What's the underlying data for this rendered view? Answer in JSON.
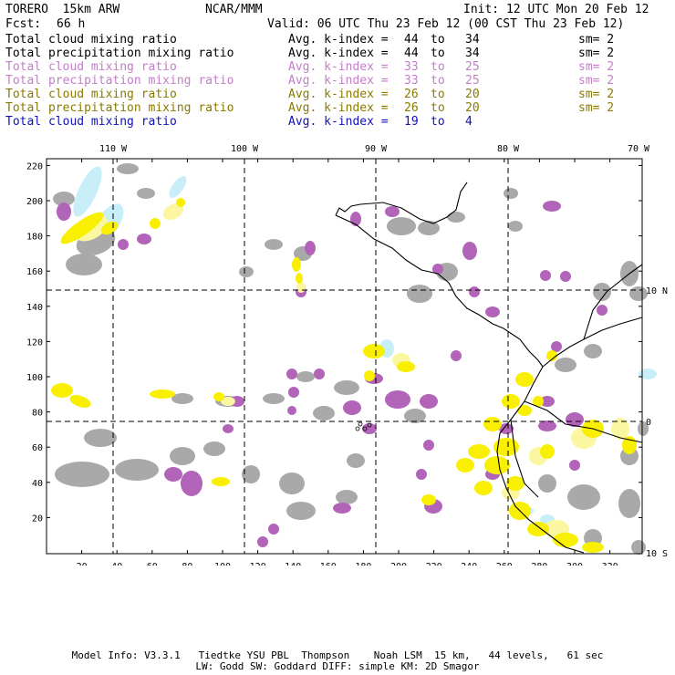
{
  "header": {
    "model": "TORERO  15km ARW",
    "org": "NCAR/MMM",
    "init": "Init: 12 UTC Mon 20 Feb 12",
    "fcst_label": "Fcst:",
    "fcst_value": "66 h",
    "valid": "Valid: 06 UTC Thu 23 Feb 12 (00 CST Thu 23 Feb 12)"
  },
  "legend": [
    {
      "name": "Total cloud mixing ratio",
      "idx": "Avg. k-index =",
      "from": "44",
      "to": "to",
      "end": "34",
      "sm": "sm= 2",
      "color": "#000000"
    },
    {
      "name": "Total precipitation mixing ratio",
      "idx": "Avg. k-index =",
      "from": "44",
      "to": "to",
      "end": "34",
      "sm": "sm= 2",
      "color": "#000000"
    },
    {
      "name": "Total cloud mixing ratio",
      "idx": "Avg. k-index =",
      "from": "33",
      "to": "to",
      "end": "25",
      "sm": "sm= 2",
      "color": "#c27ec8"
    },
    {
      "name": "Total precipitation mixing ratio",
      "idx": "Avg. k-index =",
      "from": "33",
      "to": "to",
      "end": "25",
      "sm": "sm= 2",
      "color": "#c27ec8"
    },
    {
      "name": "Total cloud mixing ratio",
      "idx": "Avg. k-index =",
      "from": "26",
      "to": "to",
      "end": "20",
      "sm": "sm= 2",
      "color": "#8a7a00"
    },
    {
      "name": "Total precipitation mixing ratio",
      "idx": "Avg. k-index =",
      "from": "26",
      "to": "to",
      "end": "20",
      "sm": "sm= 2",
      "color": "#8a7a00"
    },
    {
      "name": "Total cloud mixing ratio",
      "idx": "Avg. k-index =",
      "from": "19",
      "to": "to",
      "end": "4",
      "sm": "",
      "color": "#1010c0"
    }
  ],
  "map": {
    "top_lon_labels": [
      "110 W",
      "100 W",
      "90 W",
      "80 W",
      "70 W"
    ],
    "right_lat_labels": [
      "10 N",
      "0",
      "10 S"
    ],
    "y_ticks": [
      "220",
      "200",
      "180",
      "160",
      "140",
      "120",
      "100",
      "80",
      "60",
      "40",
      "20"
    ],
    "x_ticks": [
      "20",
      "40",
      "60",
      "80",
      "100",
      "120",
      "140",
      "160",
      "180",
      "200",
      "220",
      "240",
      "260",
      "280",
      "300",
      "320"
    ],
    "colors": {
      "gray": "#a9a9a9",
      "purple": "#b164b8",
      "yellow": "#f8f000",
      "light_yellow": "#fbf7a0",
      "cyan": "#c8eefa"
    }
  },
  "footer": {
    "line1": "Model Info: V3.3.1   Tiedtke YSU PBL  Thompson    Noah LSM  15 km,   44 levels,   61 sec",
    "line2": "LW: Godd SW: Goddard DIFF: simple KM: 2D Smagor"
  }
}
